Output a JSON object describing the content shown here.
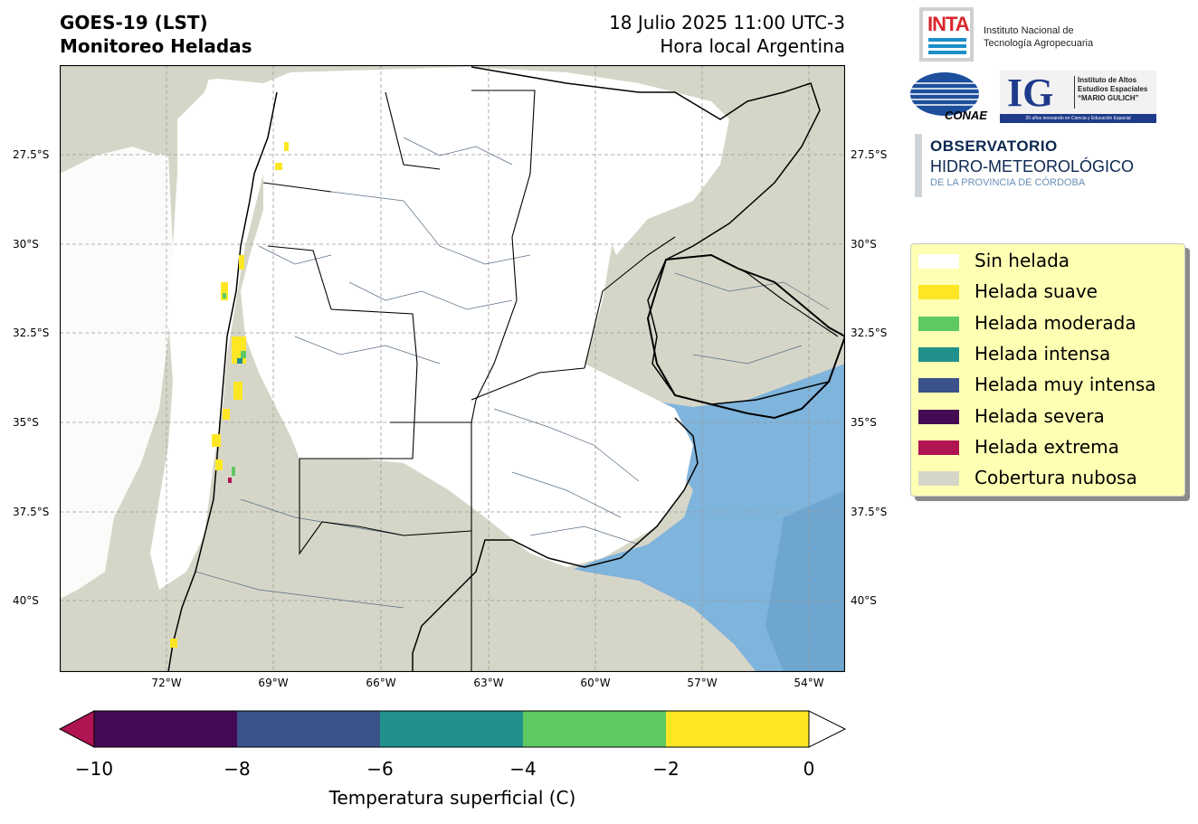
{
  "title": {
    "line1": "GOES-19 (LST)",
    "line2": "Monitoreo Heladas"
  },
  "datetime": {
    "line1": "18 Julio 2025 11:00 UTC-3",
    "line2": "Hora local Argentina"
  },
  "map": {
    "lat_ticks": [
      "27.5°S",
      "30°S",
      "32.5°S",
      "35°S",
      "37.5°S",
      "40°S"
    ],
    "lon_ticks": [
      "72°W",
      "69°W",
      "66°W",
      "63°W",
      "60°W",
      "57°W",
      "54°W"
    ],
    "colors": {
      "land": "#ffffff",
      "cloud": "#d6d6c8",
      "ocean": "#7fb4dc",
      "ocean_deep": "#6ea6cf",
      "border": "#000000",
      "dept": "#5a6e82"
    }
  },
  "colorbar": {
    "ticks": [
      "−10",
      "−8",
      "−6",
      "−4",
      "−2",
      "0"
    ],
    "values": [
      -10,
      -8,
      -6,
      -4,
      -2,
      0
    ],
    "colors": [
      "#450a54",
      "#3b528b",
      "#21918c",
      "#5ec962",
      "#fde725"
    ],
    "under_color": "#b01452",
    "over_color": "#ffffff",
    "label": "Temperatura superficial (C)"
  },
  "legend": [
    {
      "label": "Sin helada",
      "color": "#ffffff"
    },
    {
      "label": "Helada suave",
      "color": "#fde725"
    },
    {
      "label": "Helada moderada",
      "color": "#5ec962"
    },
    {
      "label": "Helada intensa",
      "color": "#21918c"
    },
    {
      "label": "Helada muy intensa",
      "color": "#3b528b"
    },
    {
      "label": "Helada severa",
      "color": "#450a54"
    },
    {
      "label": "Helada extrema",
      "color": "#b01452"
    },
    {
      "label": "Cobertura nubosa",
      "color": "#d6d6c8"
    }
  ],
  "logos": {
    "inta": {
      "mark": "INTA",
      "name_line1": "Instituto Nacional de",
      "name_line2": "Tecnología Agropecuaria"
    },
    "conae": {
      "mark": "CONAE"
    },
    "ig": {
      "mark": "IG",
      "text_line1": "Instituto de Altos",
      "text_line2": "Estudios Espaciales",
      "text_line3": "“MARIO GULICH”",
      "tagline": "20 años innovando en Ciencia y Educación Espacial"
    },
    "observatorio": {
      "line1": "OBSERVATORIO",
      "line2": "HIDRO-METEOROLÓGICO",
      "line3": "DE LA PROVINCIA DE CÓRDOBA"
    }
  }
}
